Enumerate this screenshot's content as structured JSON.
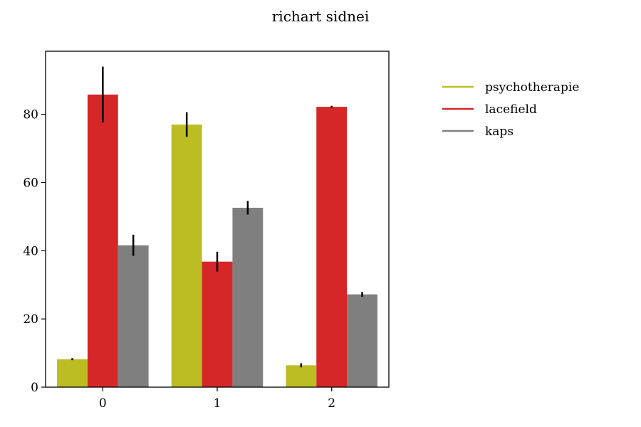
{
  "chart_data": {
    "type": "bar",
    "title": "richart sidnei",
    "xlabel": "",
    "ylabel": "",
    "categories": [
      "0",
      "1",
      "2"
    ],
    "series": [
      {
        "name": "psychotherapie",
        "color": "#bcbd22",
        "values": [
          8.2,
          77.0,
          6.4
        ],
        "errors": [
          0.3,
          3.6,
          0.6
        ]
      },
      {
        "name": "lacefield",
        "color": "#d62728",
        "values": [
          85.8,
          36.8,
          82.2
        ],
        "errors": [
          8.2,
          2.9,
          0.3
        ]
      },
      {
        "name": "kaps",
        "color": "#7f7f7f",
        "values": [
          41.6,
          52.6,
          27.2
        ],
        "errors": [
          3.1,
          2.0,
          0.7
        ]
      }
    ],
    "ylim": [
      0,
      98.5
    ],
    "yticks": [
      0,
      20,
      40,
      60,
      80
    ],
    "grid": false,
    "legend_position": "outside-right-top"
  }
}
